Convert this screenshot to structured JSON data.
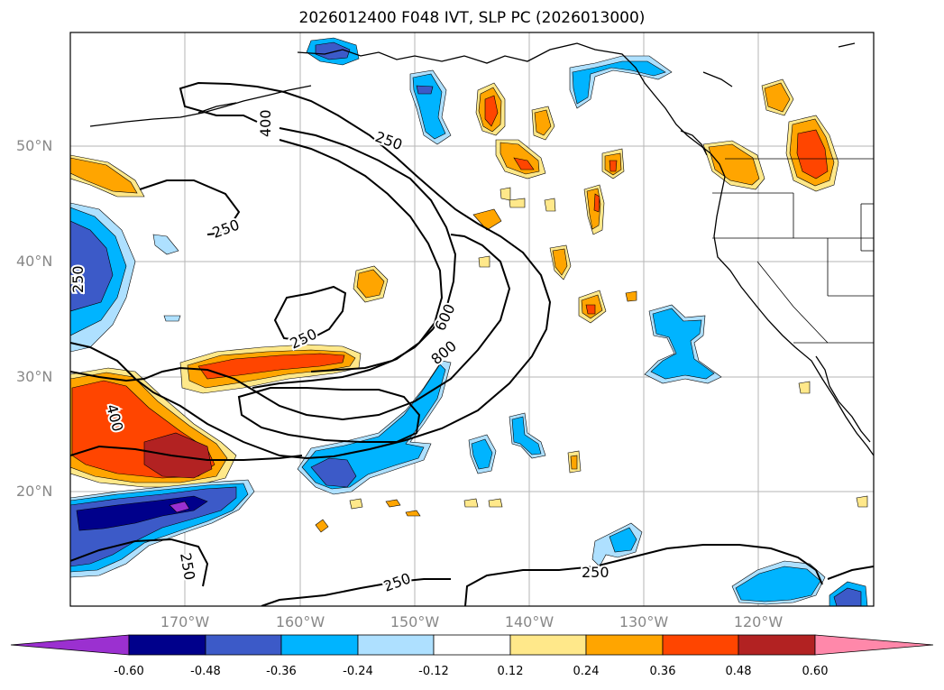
{
  "title": "2026012400 F048 IVT, SLP PC (2026013000)",
  "lat_labels": [
    "50°N",
    "40°N",
    "30°N",
    "20°N"
  ],
  "lon_labels": [
    "170°W",
    "160°W",
    "150°W",
    "140°W",
    "130°W",
    "120°W"
  ],
  "contour_labels": [
    "400",
    "250",
    "250",
    "250",
    "250",
    "600",
    "800",
    "400",
    "250",
    "250",
    "250"
  ],
  "colorbar": {
    "tick_labels": [
      "-0.60",
      "-0.48",
      "-0.36",
      "-0.24",
      "-0.12",
      "0.12",
      "0.24",
      "0.36",
      "0.48",
      "0.60"
    ],
    "colors": [
      "#9b30d0",
      "#00008b",
      "#3c5ac8",
      "#00b4ff",
      "#aee0ff",
      "#ffffff",
      "#ffe88a",
      "#ffa500",
      "#ff4500",
      "#b22222",
      "#ff88aa"
    ]
  }
}
